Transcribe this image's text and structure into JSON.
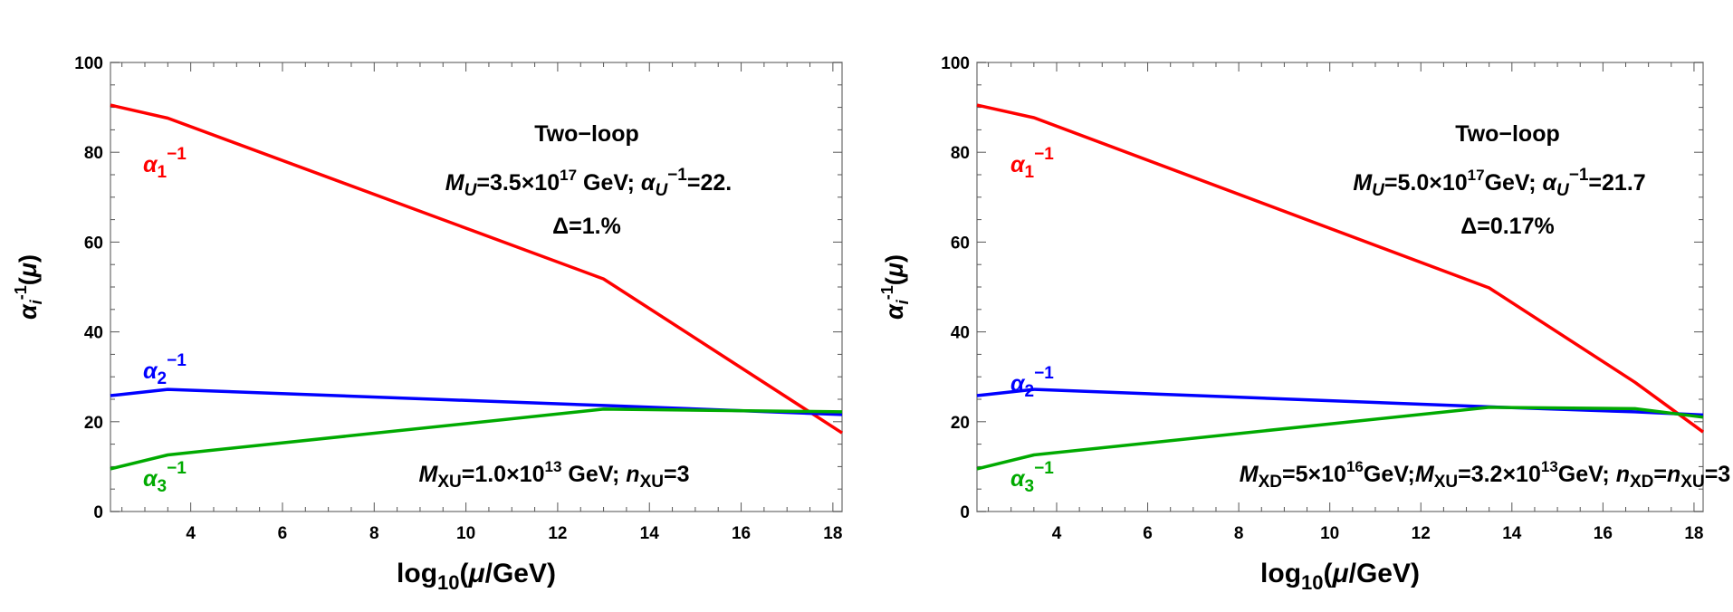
{
  "chart_data": [
    {
      "type": "line",
      "panel": "left",
      "xlabel": "log10(μ/GeV)",
      "xlabel_parts": {
        "main": "log",
        "sub": "10",
        "rest_open": "(",
        "mu": "μ",
        "rest_close": "/GeV)"
      },
      "ylabel": "α_i^-1(μ)",
      "ylabel_parts": {
        "alpha": "α",
        "sub": "i",
        "sup": "-1",
        "open": "(",
        "mu": "μ",
        "close": ")"
      },
      "xlim": [
        2.25,
        18.2
      ],
      "ylim": [
        0,
        100
      ],
      "xticks": [
        4,
        6,
        8,
        10,
        12,
        14,
        16,
        18
      ],
      "yticks": [
        0,
        20,
        40,
        60,
        80,
        100
      ],
      "grid": false,
      "series": [
        {
          "name": "α1^-1",
          "label_main": "α",
          "label_sub": "1",
          "label_sup": "−1",
          "color": "#ff0000",
          "x": [
            2.25,
            3.5,
            13.0,
            18.2
          ],
          "y": [
            90.5,
            87.6,
            51.8,
            17.5
          ]
        },
        {
          "name": "α2^-1",
          "label_main": "α",
          "label_sub": "2",
          "label_sup": "−1",
          "color": "#0000ff",
          "x": [
            2.25,
            3.5,
            13.0,
            18.2
          ],
          "y": [
            25.8,
            27.2,
            23.6,
            21.6
          ]
        },
        {
          "name": "α3^-1",
          "label_main": "α",
          "label_sub": "3",
          "label_sup": "−1",
          "color": "#00aa00",
          "x": [
            2.25,
            3.5,
            13.0,
            18.2
          ],
          "y": [
            9.5,
            12.6,
            22.8,
            22.2
          ]
        }
      ],
      "annotations": {
        "title": "Two−loop",
        "line1": {
          "m": "M",
          "m_sub": "U",
          "eq": "=3.5×10",
          "exp": "17",
          "gev": " GeV; ",
          "alpha": "α",
          "alpha_sub": "U",
          "alpha_sup": "−1",
          "val": "=22."
        },
        "line2": "Δ=1.%",
        "bottom": {
          "parts": [
            {
              "t": "M",
              "style": "italic"
            },
            {
              "t": "XU",
              "style": "sub"
            },
            {
              "t": "=1.0×10",
              "style": "normal"
            },
            {
              "t": "13",
              "style": "sup"
            },
            {
              "t": " GeV; ",
              "style": "normal"
            },
            {
              "t": "n",
              "style": "italic"
            },
            {
              "t": "XU",
              "style": "sub"
            },
            {
              "t": "=3",
              "style": "normal"
            }
          ]
        }
      }
    },
    {
      "type": "line",
      "panel": "right",
      "xlabel": "log10(μ/GeV)",
      "xlabel_parts": {
        "main": "log",
        "sub": "10",
        "rest_open": "(",
        "mu": "μ",
        "rest_close": "/GeV)"
      },
      "ylabel": "α_i^-1(μ)",
      "ylabel_parts": {
        "alpha": "α",
        "sub": "i",
        "sup": "-1",
        "open": "(",
        "mu": "μ",
        "close": ")"
      },
      "xlim": [
        2.25,
        18.2
      ],
      "ylim": [
        0,
        100
      ],
      "xticks": [
        4,
        6,
        8,
        10,
        12,
        14,
        16,
        18
      ],
      "yticks": [
        0,
        20,
        40,
        60,
        80,
        100
      ],
      "grid": false,
      "series": [
        {
          "name": "α1^-1",
          "label_main": "α",
          "label_sub": "1",
          "label_sup": "−1",
          "color": "#ff0000",
          "x": [
            2.25,
            3.5,
            13.5,
            16.7,
            18.2
          ],
          "y": [
            90.5,
            87.7,
            49.8,
            28.8,
            17.7
          ]
        },
        {
          "name": "α2^-1",
          "label_main": "α",
          "label_sub": "2",
          "label_sup": "−1",
          "color": "#0000ff",
          "x": [
            2.25,
            3.5,
            13.5,
            16.7,
            18.2
          ],
          "y": [
            25.8,
            27.2,
            23.3,
            22.2,
            21.5
          ]
        },
        {
          "name": "α3^-1",
          "label_main": "α",
          "label_sub": "3",
          "label_sup": "−1",
          "color": "#00aa00",
          "x": [
            2.25,
            3.5,
            13.5,
            16.7,
            18.2
          ],
          "y": [
            9.5,
            12.6,
            23.2,
            22.9,
            21.0
          ]
        }
      ],
      "annotations": {
        "title": "Two−loop",
        "line1": {
          "m": "M",
          "m_sub": "U",
          "eq": "=5.0×10",
          "exp": "17",
          "gev": "GeV; ",
          "alpha": "α",
          "alpha_sub": "U",
          "alpha_sup": "−1",
          "val": "=21.7"
        },
        "line2": "Δ=0.17%",
        "bottom": {
          "parts": [
            {
              "t": "M",
              "style": "italic"
            },
            {
              "t": "XD",
              "style": "sub"
            },
            {
              "t": "=5×10",
              "style": "normal"
            },
            {
              "t": "16",
              "style": "sup"
            },
            {
              "t": "GeV;",
              "style": "normal"
            },
            {
              "t": "M",
              "style": "italic"
            },
            {
              "t": "XU",
              "style": "sub"
            },
            {
              "t": "=3.2×10",
              "style": "normal"
            },
            {
              "t": "13",
              "style": "sup"
            },
            {
              "t": "GeV; ",
              "style": "normal"
            },
            {
              "t": "n",
              "style": "italic"
            },
            {
              "t": "XD",
              "style": "sub"
            },
            {
              "t": "=",
              "style": "normal"
            },
            {
              "t": "n",
              "style": "italic"
            },
            {
              "t": "XU",
              "style": "sub"
            },
            {
              "t": "=3",
              "style": "normal"
            }
          ]
        }
      }
    }
  ]
}
